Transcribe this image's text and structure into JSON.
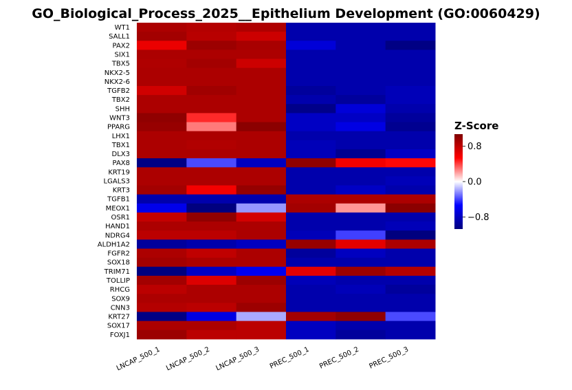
{
  "chart_data": {
    "type": "heatmap",
    "title": "GO_Biological_Process_2025__Epithelium Development (GO:0060429)",
    "columns": [
      "LNCAP_500_1",
      "LNCAP_500_2",
      "LNCAP_500_3",
      "PREC_500_1",
      "PREC_500_2",
      "PREC_500_3"
    ],
    "rows": [
      "WT1",
      "SALL1",
      "PAX2",
      "SIX1",
      "TBX5",
      "NKX2-5",
      "NKX2-6",
      "TGFB2",
      "TBX2",
      "SHH",
      "WNT3",
      "PPARG",
      "LHX1",
      "TBX1",
      "DLX3",
      "PAX8",
      "KRT19",
      "LGALS3",
      "KRT3",
      "TGFB1",
      "MEOX1",
      "OSR1",
      "HAND1",
      "NDRG4",
      "ALDH1A2",
      "FGFR2",
      "SOX18",
      "TRIM71",
      "TOLLIP",
      "RHCG",
      "SOX9",
      "CNN3",
      "KRT27",
      "SOX17",
      "FOXJ1"
    ],
    "values": [
      [
        0.88,
        0.85,
        0.87,
        -0.88,
        -0.88,
        -0.88
      ],
      [
        0.92,
        0.83,
        0.75,
        -0.88,
        -0.88,
        -0.88
      ],
      [
        0.62,
        0.95,
        0.9,
        -0.7,
        -0.88,
        -1.05
      ],
      [
        0.88,
        0.88,
        0.88,
        -0.88,
        -0.88,
        -0.88
      ],
      [
        0.87,
        0.92,
        0.75,
        -0.88,
        -0.88,
        -0.88
      ],
      [
        0.88,
        0.88,
        0.88,
        -0.88,
        -0.88,
        -0.88
      ],
      [
        0.88,
        0.88,
        0.88,
        -0.88,
        -0.88,
        -0.88
      ],
      [
        0.73,
        0.93,
        0.88,
        -0.95,
        -0.88,
        -0.83
      ],
      [
        0.88,
        0.88,
        0.88,
        -0.88,
        -0.95,
        -0.83
      ],
      [
        0.88,
        0.88,
        0.88,
        -1.03,
        -0.7,
        -0.88
      ],
      [
        1.0,
        0.45,
        0.88,
        -0.78,
        -0.78,
        -0.95
      ],
      [
        0.97,
        0.28,
        1.02,
        -0.78,
        -0.65,
        -1.0
      ],
      [
        0.88,
        0.88,
        0.88,
        -0.88,
        -0.88,
        -0.88
      ],
      [
        0.88,
        0.86,
        0.88,
        -0.83,
        -0.88,
        -0.88
      ],
      [
        0.88,
        0.88,
        0.88,
        -0.83,
        -1.0,
        -0.78
      ],
      [
        -1.05,
        -0.38,
        -0.8,
        1.0,
        0.58,
        0.52
      ],
      [
        0.88,
        0.88,
        0.88,
        -0.88,
        -0.88,
        -0.88
      ],
      [
        0.88,
        0.88,
        0.88,
        -0.88,
        -0.88,
        -0.83
      ],
      [
        0.92,
        0.58,
        0.98,
        -0.88,
        -0.78,
        -0.88
      ],
      [
        -0.88,
        -0.88,
        -0.88,
        0.88,
        0.88,
        0.88
      ],
      [
        -0.62,
        -1.07,
        -0.22,
        0.92,
        0.22,
        1.02
      ],
      [
        0.78,
        1.0,
        0.72,
        -0.88,
        -0.88,
        -0.88
      ],
      [
        0.88,
        0.88,
        0.88,
        -0.88,
        -0.88,
        -0.83
      ],
      [
        0.82,
        0.82,
        0.88,
        -0.83,
        -0.4,
        -1.07
      ],
      [
        -0.95,
        -0.88,
        -0.8,
        0.97,
        0.65,
        0.88
      ],
      [
        0.88,
        0.8,
        0.88,
        -0.95,
        -0.8,
        -0.88
      ],
      [
        0.92,
        0.88,
        0.88,
        -0.88,
        -0.88,
        -0.88
      ],
      [
        -1.07,
        -0.78,
        -0.6,
        0.65,
        0.95,
        0.85
      ],
      [
        0.92,
        0.68,
        0.95,
        -0.83,
        -0.88,
        -0.88
      ],
      [
        0.82,
        0.88,
        0.88,
        -0.88,
        -0.83,
        -0.95
      ],
      [
        0.88,
        0.88,
        0.88,
        -0.88,
        -0.88,
        -0.88
      ],
      [
        0.85,
        0.82,
        0.95,
        -0.88,
        -0.88,
        -0.88
      ],
      [
        -1.05,
        -0.65,
        -0.18,
        0.92,
        1.0,
        -0.38
      ],
      [
        0.88,
        0.88,
        0.82,
        -0.8,
        -0.88,
        -0.88
      ],
      [
        0.95,
        0.82,
        0.82,
        -0.8,
        -0.95,
        -0.88
      ]
    ],
    "colorbar": {
      "label": "Z-Score",
      "ticks": [
        {
          "value": 0.8,
          "label": "0.8"
        },
        {
          "value": 0.0,
          "label": "0.0"
        },
        {
          "value": -0.8,
          "label": "−0.8"
        }
      ],
      "vmin": -1.07,
      "vmax": 1.07
    },
    "colors": {
      "low": "#00007f",
      "mid": "#ffffff",
      "high": "#7f0000",
      "colormap": "seismic-like (blue–white–red)"
    }
  }
}
